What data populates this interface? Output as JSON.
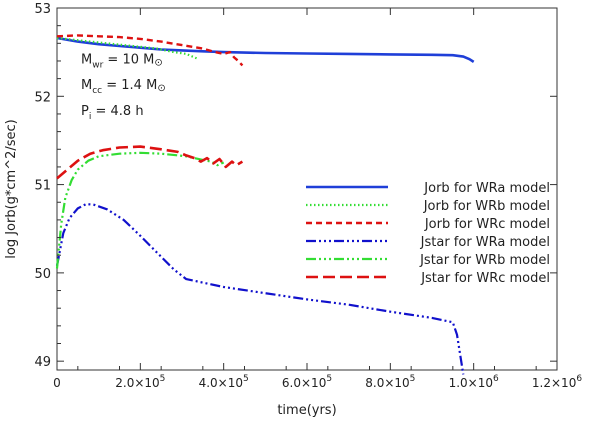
{
  "chart_data": {
    "type": "line",
    "title": "",
    "xlabel": "time(yrs)",
    "ylabel": "log Jorb(g*cm^2/sec)",
    "xlim": [
      0,
      1200000
    ],
    "ylim": [
      48.9,
      53
    ],
    "grid": false,
    "legend_position": "right",
    "x_ticks": [
      {
        "value": 0,
        "label": "0",
        "mant": "",
        "exp": ""
      },
      {
        "value": 200000,
        "label": "2.0×10^5",
        "mant": "2.0×10",
        "exp": "5"
      },
      {
        "value": 400000,
        "label": "4.0×10^5",
        "mant": "4.0×10",
        "exp": "5"
      },
      {
        "value": 600000,
        "label": "6.0×10^5",
        "mant": "6.0×10",
        "exp": "5"
      },
      {
        "value": 800000,
        "label": "8.0×10^5",
        "mant": "8.0×10",
        "exp": "5"
      },
      {
        "value": 1000000,
        "label": "1.0×10^6",
        "mant": "1.0×10",
        "exp": "6"
      },
      {
        "value": 1200000,
        "label": "1.2×10^6",
        "mant": "1.2×10",
        "exp": "6"
      }
    ],
    "y_ticks": [
      {
        "value": 49,
        "label": "49"
      },
      {
        "value": 50,
        "label": "50"
      },
      {
        "value": 51,
        "label": "51"
      },
      {
        "value": 52,
        "label": "52"
      },
      {
        "value": 53,
        "label": "53"
      }
    ],
    "annotations": [
      {
        "main": "M",
        "sub": "wr",
        "rest": " = 10 M",
        "sym": "⊙",
        "x": 0,
        "y": 52.37
      },
      {
        "main": "M",
        "sub": "cc",
        "rest": " = 1.4 M",
        "sym": "⊙",
        "x": 0,
        "y": 52.08
      },
      {
        "main": "P",
        "sub": "i",
        "rest": "  = 4.8 h",
        "sym": "",
        "x": 0,
        "y": 51.79
      }
    ],
    "series": [
      {
        "name": "Jorb for WRa model",
        "color": "#1f3fd8",
        "dash": "",
        "width": 2.6,
        "points": [
          [
            0,
            52.66
          ],
          [
            50000,
            52.62
          ],
          [
            100000,
            52.59
          ],
          [
            150000,
            52.57
          ],
          [
            200000,
            52.55
          ],
          [
            250000,
            52.53
          ],
          [
            300000,
            52.52
          ],
          [
            350000,
            52.51
          ],
          [
            400000,
            52.5
          ],
          [
            500000,
            52.49
          ],
          [
            600000,
            52.485
          ],
          [
            700000,
            52.48
          ],
          [
            800000,
            52.475
          ],
          [
            900000,
            52.47
          ],
          [
            950000,
            52.465
          ],
          [
            975000,
            52.45
          ],
          [
            990000,
            52.42
          ],
          [
            1000000,
            52.39
          ]
        ]
      },
      {
        "name": "Jorb for WRb model",
        "color": "#33dd33",
        "dash": "1.5,2.5",
        "width": 2.2,
        "points": [
          [
            0,
            52.66
          ],
          [
            40000,
            52.64
          ],
          [
            80000,
            52.62
          ],
          [
            120000,
            52.6
          ],
          [
            160000,
            52.58
          ],
          [
            200000,
            52.56
          ],
          [
            240000,
            52.54
          ],
          [
            280000,
            52.5
          ],
          [
            310000,
            52.48
          ],
          [
            340000,
            52.42
          ]
        ]
      },
      {
        "name": "Jorb for WRc model",
        "color": "#dd1111",
        "dash": "6,4",
        "width": 2.4,
        "points": [
          [
            0,
            52.68
          ],
          [
            50000,
            52.69
          ],
          [
            100000,
            52.68
          ],
          [
            150000,
            52.67
          ],
          [
            200000,
            52.65
          ],
          [
            250000,
            52.62
          ],
          [
            300000,
            52.58
          ],
          [
            350000,
            52.54
          ],
          [
            380000,
            52.5
          ],
          [
            400000,
            52.48
          ],
          [
            415000,
            52.5
          ],
          [
            425000,
            52.44
          ],
          [
            435000,
            52.4
          ],
          [
            445000,
            52.35
          ]
        ]
      },
      {
        "name": "Jstar for WRa model",
        "color": "#1111cc",
        "dash": "10,3,2,3,2,3,2,3",
        "width": 2.2,
        "points": [
          [
            0,
            50.08
          ],
          [
            15000,
            50.45
          ],
          [
            30000,
            50.62
          ],
          [
            50000,
            50.73
          ],
          [
            70000,
            50.78
          ],
          [
            90000,
            50.77
          ],
          [
            120000,
            50.72
          ],
          [
            160000,
            50.6
          ],
          [
            200000,
            50.42
          ],
          [
            240000,
            50.23
          ],
          [
            280000,
            50.04
          ],
          [
            310000,
            49.93
          ],
          [
            400000,
            49.84
          ],
          [
            500000,
            49.77
          ],
          [
            600000,
            49.7
          ],
          [
            700000,
            49.64
          ],
          [
            800000,
            49.56
          ],
          [
            900000,
            49.49
          ],
          [
            950000,
            49.44
          ],
          [
            960000,
            49.3
          ],
          [
            970000,
            49.0
          ],
          [
            975000,
            48.85
          ]
        ]
      },
      {
        "name": "Jstar for WRb model",
        "color": "#33dd33",
        "dash": "10,3,2,3,2,3,2,3",
        "width": 2.2,
        "points": [
          [
            0,
            50.05
          ],
          [
            10000,
            50.55
          ],
          [
            20000,
            50.85
          ],
          [
            35000,
            51.05
          ],
          [
            50000,
            51.17
          ],
          [
            75000,
            51.27
          ],
          [
            100000,
            51.32
          ],
          [
            150000,
            51.35
          ],
          [
            200000,
            51.36
          ],
          [
            250000,
            51.35
          ],
          [
            290000,
            51.33
          ],
          [
            310000,
            51.32
          ],
          [
            330000,
            51.3
          ],
          [
            350000,
            51.28
          ],
          [
            370000,
            51.26
          ],
          [
            385000,
            51.22
          ],
          [
            400000,
            51.25
          ]
        ]
      },
      {
        "name": "Jstar for WRc model",
        "color": "#dd1111",
        "dash": "12,5",
        "width": 2.6,
        "points": [
          [
            0,
            51.07
          ],
          [
            25000,
            51.17
          ],
          [
            50000,
            51.27
          ],
          [
            80000,
            51.35
          ],
          [
            110000,
            51.39
          ],
          [
            150000,
            51.42
          ],
          [
            200000,
            51.43
          ],
          [
            250000,
            51.4
          ],
          [
            290000,
            51.37
          ],
          [
            310000,
            51.33
          ],
          [
            330000,
            51.3
          ],
          [
            345000,
            51.26
          ],
          [
            360000,
            51.3
          ],
          [
            375000,
            51.24
          ],
          [
            390000,
            51.29
          ],
          [
            405000,
            51.2
          ],
          [
            420000,
            51.26
          ],
          [
            430000,
            51.22
          ],
          [
            445000,
            51.26
          ]
        ]
      }
    ]
  }
}
